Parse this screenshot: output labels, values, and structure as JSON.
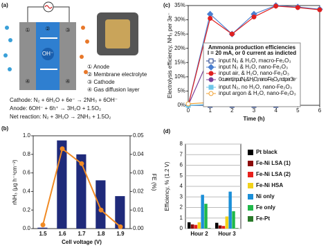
{
  "diagram": {
    "panel_label": "(a)",
    "membrane_label": "OH⁻",
    "layer_numbers": [
      "①",
      "②",
      "③",
      "④",
      "④"
    ],
    "legend": [
      "① Anode",
      "② Membrane electrolyte",
      "③ Cathode",
      "④ Gas diffusion layer"
    ],
    "equations": [
      "Cathode: N₂ + 6H₂O + 6e⁻ → 2NH₃ + 6OH⁻",
      "Anode: 6OH⁻ + 6h⁺ → 3H₂O + 1.5O₂",
      "Net reaction: N₂ + 3H₂O → 2NH₃ + 1.5O₂"
    ]
  },
  "chart_data": [
    {
      "type": "bar",
      "panel_label": "(b)",
      "xlabel": "Cell voltage (V)",
      "ylabel": "rNH₃ (μg h⁻¹cm⁻²)",
      "y2label": "FE (%)",
      "categories": [
        "1.5",
        "1.6",
        "1.7",
        "1.8",
        "1.9"
      ],
      "series": [
        {
          "color": "#1f2a7a",
          "values": [
            0.01,
            0.95,
            0.8,
            0.52,
            0.35
          ]
        },
        {
          "color": "#f08a24",
          "values": [
            0.002,
            0.043,
            0.035,
            0.01,
            0.001
          ],
          "axis": "y2"
        }
      ],
      "ylim": [
        0,
        1
      ],
      "yticks": [
        {
          "value": 0,
          "label": "0.0"
        },
        0.2,
        0.4,
        0.6,
        0.8,
        {
          "value": 1,
          "label": "1.0"
        }
      ],
      "y2lim": [
        0,
        0.05
      ],
      "y2ticks": [
        {
          "value": 0,
          "label": "0.00"
        },
        0.01,
        0.02,
        0.03,
        0.04,
        0.05
      ],
      "grid": false
    },
    {
      "type": "line",
      "panel_label": "(c)",
      "xlabel": "Time (h)",
      "ylabel": "Electrolysis efficiency, NH₃ per 3e⁻",
      "x": [
        0,
        1,
        2,
        3,
        4,
        5,
        6
      ],
      "xlim": [
        0,
        6
      ],
      "xticks": [
        0,
        1,
        2,
        3,
        4,
        5,
        6
      ],
      "ylim": [
        0,
        35
      ],
      "yticks": [
        {
          "value": 0,
          "label": "0%"
        },
        {
          "value": 5,
          "label": "5%"
        },
        {
          "value": 10,
          "label": "10%"
        },
        {
          "value": 15,
          "label": "15%"
        },
        {
          "value": 20,
          "label": "20%"
        },
        {
          "value": 25,
          "label": "25%"
        },
        {
          "value": 30,
          "label": "30%"
        },
        {
          "value": 35,
          "label": "35%"
        }
      ],
      "legend": "center",
      "legend_title": [
        "Ammonia production efficiencies",
        "I = 20 mA, or 0 current as indicted"
      ],
      "series": [
        {
          "name": "input N₂ & H₂O, macro-Fe₂O₃",
          "color": "#1a3a8a",
          "marker": "square",
          "open": true,
          "values": [
            0,
            0,
            0,
            0,
            0,
            null,
            null
          ]
        },
        {
          "name": "input N₂ & H₂O, nano-Fe₂O₃",
          "color": "#4a7fd0",
          "marker": "diamond",
          "open": false,
          "values": [
            0,
            32,
            25,
            32,
            35,
            34.5,
            33.7
          ]
        },
        {
          "name": "input air, & H₂O, nano-Fe₂O₃",
          "color": "#e02020",
          "marker": "circle",
          "open": false,
          "values": [
            0,
            30.5,
            25,
            31,
            34.8,
            34.3,
            33.5
          ]
        },
        {
          "name": "0 current, input N₂ & H₂O, nano-Fe₂O₃, not per 3e⁻",
          "color": "#7a3f98",
          "marker": "circle",
          "open": false,
          "values": [
            0,
            17.5,
            18,
            6,
            4,
            null,
            null
          ]
        },
        {
          "name": "input N₂, no H₂O, nano-Fe₂O₃",
          "color": "#6ec6e8",
          "marker": "square",
          "open": false,
          "values": [
            0,
            0.3,
            0.3,
            0.3,
            0.3,
            null,
            null
          ]
        },
        {
          "name": "input argon & H₂O, nano-Fe₂O₃",
          "color": "#f0a030",
          "marker": "circle",
          "open": true,
          "values": [
            0.5,
            1,
            1,
            1.7,
            1.2,
            null,
            null
          ]
        }
      ]
    },
    {
      "type": "bar",
      "panel_label": "(d)",
      "ylabel": "Efficiency, % (1.2 V)",
      "categories": [
        "Hour 2",
        "Hour 3"
      ],
      "ylim": [
        0,
        8
      ],
      "yticks": [
        0,
        1,
        2,
        3,
        4,
        5,
        6,
        7,
        8
      ],
      "grid": true,
      "legend": "right",
      "series": [
        {
          "name": "Pt black",
          "color": "#000000",
          "values": [
            0.6,
            0.55
          ]
        },
        {
          "name": "Fe-Ni LSA (1)",
          "color": "#8b0a0a",
          "values": [
            0.4,
            0.3
          ]
        },
        {
          "name": "Fe-Ni LSA (2)",
          "color": "#e8201c",
          "values": [
            0.35,
            0.25
          ]
        },
        {
          "name": "Fe-Ni HSA",
          "color": "#f2d21a",
          "values": [
            0.6,
            1.15
          ]
        },
        {
          "name": "Ni only",
          "color": "#1b8fd8",
          "values": [
            3.2,
            3.5
          ]
        },
        {
          "name": "Fe only",
          "color": "#20b84a",
          "values": [
            2.35,
            1.65
          ]
        },
        {
          "name": "Fe-Pt",
          "color": "#2a7a2a",
          "values": [
            0.05,
            0.05
          ]
        }
      ]
    }
  ]
}
